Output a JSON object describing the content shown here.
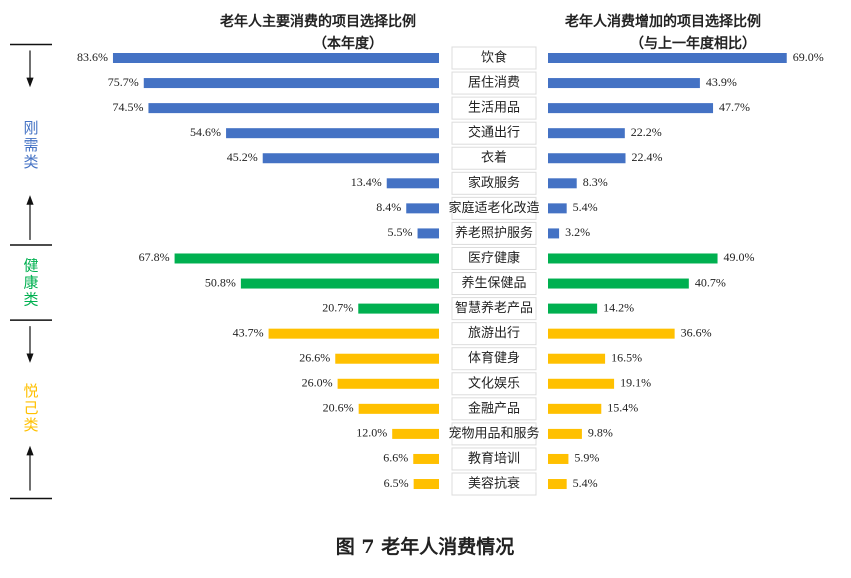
{
  "chart_data": {
    "type": "butterfly",
    "series": [
      {
        "name_lines": [
          "老年人主要消费的项目选择比例",
          "（本年度）"
        ],
        "xlim": [
          0,
          100
        ],
        "values": [
          83.6,
          75.7,
          74.5,
          54.6,
          45.2,
          13.4,
          8.4,
          5.5,
          67.8,
          50.8,
          20.7,
          43.7,
          26.6,
          26.0,
          20.6,
          12.0,
          6.6,
          6.5
        ],
        "value_labels": [
          "83.6%",
          "75.7%",
          "74.5%",
          "54.6%",
          "45.2%",
          "13.4%",
          "8.4%",
          "5.5%",
          "67.8%",
          "50.8%",
          "20.7%",
          "43.7%",
          "26.6%",
          "26.0%",
          "20.6%",
          "12.0%",
          "6.6%",
          "6.5%"
        ]
      },
      {
        "name_lines": [
          "老年人消费增加的项目选择比例",
          "（与上一年度相比）"
        ],
        "xlim": [
          0,
          100
        ],
        "values": [
          69.0,
          43.9,
          47.7,
          22.2,
          22.4,
          8.3,
          5.4,
          3.2,
          49.0,
          40.7,
          14.2,
          36.6,
          16.5,
          19.1,
          15.4,
          9.8,
          5.9,
          5.4
        ],
        "value_labels": [
          "69.0%",
          "43.9%",
          "47.7%",
          "22.2%",
          "22.4%",
          "8.3%",
          "5.4%",
          "3.2%",
          "49.0%",
          "40.7%",
          "14.2%",
          "36.6%",
          "16.5%",
          "19.1%",
          "15.4%",
          "9.8%",
          "5.9%",
          "5.4%"
        ]
      }
    ],
    "groups": [
      {
        "name": "刚需类",
        "color": "#4472c4",
        "categories": [
          "饮食",
          "居住消费",
          "生活用品",
          "交通出行",
          "衣着",
          "家政服务",
          "家庭适老化改造",
          "养老照护服务"
        ]
      },
      {
        "name": "健康类",
        "color": "#00b050",
        "categories": [
          "医疗健康",
          "养生保健品",
          "智慧养老产品"
        ]
      },
      {
        "name": "悦己类",
        "color": "#ffc000",
        "categories": [
          "旅游出行",
          "体育健身",
          "文化娱乐",
          "金融产品",
          "宠物用品和服务",
          "教育培训",
          "美容抗衰"
        ]
      }
    ],
    "caption": "图 7  老年人消费情况"
  }
}
